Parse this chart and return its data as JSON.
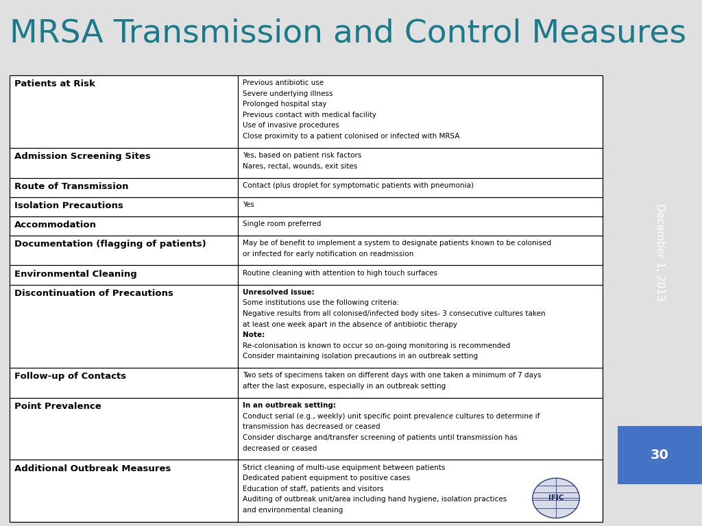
{
  "title": "MRSA Transmission and Control Measures",
  "title_color": "#1a7a8a",
  "title_fontsize": 34,
  "sidebar_color": "#1a7a8a",
  "sidebar_text": "December 1, 2013",
  "sidebar_page": "30",
  "page_number_bg": "#4472c4",
  "background_color": "#e0e0e0",
  "table_bg": "#ffffff",
  "rows": [
    {
      "label": "Patients at Risk",
      "content": "Previous antibiotic use\nSevere underlying illness\nProlonged hospital stay\nPrevious contact with medical facility\nUse of invasive procedures\nClose proximity to a patient colonised or infected with MRSA",
      "bold_parts": []
    },
    {
      "label": "Admission Screening Sites",
      "content": "Yes, based on patient risk factors\nNares, rectal, wounds, exit sites",
      "bold_parts": []
    },
    {
      "label": "Route of Transmission",
      "content": "Contact (plus droplet for symptomatic patients with pneumonia)",
      "bold_parts": []
    },
    {
      "label": "Isolation Precautions",
      "content": "Yes",
      "bold_parts": []
    },
    {
      "label": "Accommodation",
      "content": "Single room preferred",
      "bold_parts": []
    },
    {
      "label": "Documentation (flagging of patients)",
      "content": "May be of benefit to implement a system to designate patients known to be colonised\nor infected for early notification on readmission",
      "bold_parts": []
    },
    {
      "label": "Environmental Cleaning",
      "content": "Routine cleaning with attention to high touch surfaces",
      "bold_parts": []
    },
    {
      "label": "Discontinuation of Precautions",
      "content": "Unresolved issue:\nSome institutions use the following criteria:\nNegative results from all colonised/infected body sites- 3 consecutive cultures taken\nat least one week apart in the absence of antibiotic therapy\nNote:\nRe-colonisation is known to occur so on-going monitoring is recommended\nConsider maintaining isolation precautions in an outbreak setting",
      "bold_parts": [
        "Unresolved issue:",
        "Note:"
      ]
    },
    {
      "label": "Follow-up of Contacts",
      "content": "Two sets of specimens taken on different days with one taken a minimum of 7 days\nafter the last exposure, especially in an outbreak setting",
      "bold_parts": []
    },
    {
      "label": "Point Prevalence",
      "content": "In an outbreak setting:\nConduct serial (e.g., weekly) unit specific point prevalence cultures to determine if\ntransmission has decreased or ceased\nConsider discharge and/transfer screening of patients until transmission has\ndecreased or ceased",
      "bold_parts": [
        "In an outbreak setting:"
      ]
    },
    {
      "label": "Additional Outbreak Measures",
      "content": "Strict cleaning of multi-use equipment between patients\nDedicated patient equipment to positive cases\nEducation of staff, patients and visitors\nAuditing of outbreak unit/area including hand hygiene, isolation practices\nand environmental cleaning",
      "bold_parts": []
    }
  ]
}
